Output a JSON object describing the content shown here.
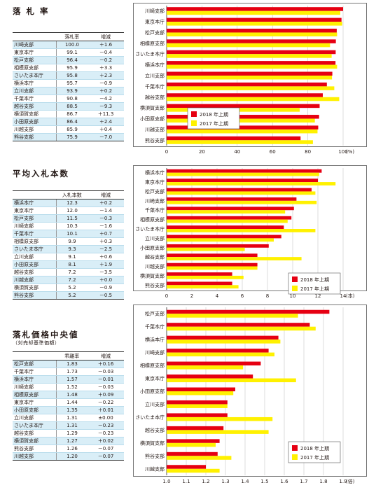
{
  "sections": [
    {
      "title": "落 札 率",
      "subtitle": "",
      "table": {
        "headers": [
          "",
          "落札率",
          "増減"
        ],
        "rows": [
          [
            "川崎支部",
            "100.0",
            "＋1.6"
          ],
          [
            "東京本庁",
            "99.1",
            "－0.4"
          ],
          [
            "松戸支部",
            "96.4",
            "－0.2"
          ],
          [
            "相模原支部",
            "95.9",
            "＋3.3"
          ],
          [
            "さいたま本庁",
            "95.8",
            "＋2.3"
          ],
          [
            "横浜本庁",
            "95.7",
            "－0.9"
          ],
          [
            "立川支部",
            "93.9",
            "＋0.2"
          ],
          [
            "千葉本庁",
            "90.8",
            "－4.2"
          ],
          [
            "越谷支部",
            "88.5",
            "－9.3"
          ],
          [
            "横須賀支部",
            "86.7",
            "＋11.3"
          ],
          [
            "小田原支部",
            "86.4",
            "＋2.4"
          ],
          [
            "川越支部",
            "85.9",
            "＋0.4"
          ],
          [
            "熊谷支部",
            "75.9",
            "－7.0"
          ]
        ]
      }
    },
    {
      "title": "平均入札本数",
      "subtitle": "",
      "table": {
        "headers": [
          "",
          "入札本数",
          "増減"
        ],
        "rows": [
          [
            "横浜本庁",
            "12.3",
            "＋0.2"
          ],
          [
            "東京本庁",
            "12.0",
            "－1.4"
          ],
          [
            "松戸支部",
            "11.5",
            "－0.3"
          ],
          [
            "川崎支部",
            "10.3",
            "－1.6"
          ],
          [
            "千葉本庁",
            "10.1",
            "＋0.7"
          ],
          [
            "相模原支部",
            "9.9",
            "＋0.3"
          ],
          [
            "さいたま本庁",
            "9.3",
            "－2.5"
          ],
          [
            "立川支部",
            "9.1",
            "＋0.6"
          ],
          [
            "小田原支部",
            "8.1",
            "＋1.9"
          ],
          [
            "越谷支部",
            "7.2",
            "－3.5"
          ],
          [
            "川越支部",
            "7.2",
            "＋0.0"
          ],
          [
            "横須賀支部",
            "5.2",
            "－0.9"
          ],
          [
            "熊谷支部",
            "5.2",
            "－0.5"
          ]
        ]
      }
    },
    {
      "title": "落札価格中央値",
      "subtitle": "（対売却基準価額）",
      "table": {
        "headers": [
          "",
          "乖離率",
          "増減"
        ],
        "rows": [
          [
            "松戸支部",
            "1.83",
            "＋0.16"
          ],
          [
            "千葉本庁",
            "1.73",
            "－0.03"
          ],
          [
            "横浜本庁",
            "1.57",
            "－0.01"
          ],
          [
            "川崎支部",
            "1.52",
            "－0.03"
          ],
          [
            "相模原支部",
            "1.48",
            "＋0.09"
          ],
          [
            "東京本庁",
            "1.44",
            "－0.22"
          ],
          [
            "小田原支部",
            "1.35",
            "＋0.01"
          ],
          [
            "立川支部",
            "1.31",
            "±0.00"
          ],
          [
            "さいたま本庁",
            "1.31",
            "－0.23"
          ],
          [
            "越谷支部",
            "1.29",
            "－0.23"
          ],
          [
            "横須賀支部",
            "1.27",
            "＋0.02"
          ],
          [
            "熊谷支部",
            "1.26",
            "－0.07"
          ],
          [
            "川越支部",
            "1.20",
            "－0.07"
          ]
        ]
      }
    }
  ],
  "chart_data": [
    {
      "type": "bar",
      "orientation": "horizontal",
      "categories": [
        "川崎支部",
        "東京本庁",
        "松戸支部",
        "相模原支部",
        "さいたま本庁",
        "横浜本庁",
        "立川支部",
        "千葉本庁",
        "越谷支部",
        "横須賀支部",
        "小田原支部",
        "川越支部",
        "熊谷支部"
      ],
      "series": [
        {
          "name": "2018 年上期",
          "color": "#e60012",
          "values": [
            100.0,
            99.1,
            96.4,
            95.9,
            95.8,
            95.7,
            93.9,
            90.8,
            88.5,
            86.7,
            86.4,
            85.9,
            75.9
          ]
        },
        {
          "name": "2017 年上期",
          "color": "#fff100",
          "values": [
            98.4,
            99.5,
            96.6,
            92.6,
            93.5,
            96.6,
            93.7,
            95.0,
            97.8,
            75.4,
            84.0,
            85.5,
            82.9
          ]
        }
      ],
      "xlim": [
        0,
        100
      ],
      "ticks": [
        "0",
        "20",
        "40",
        "60",
        "80",
        "100"
      ],
      "unit": "(%)",
      "legend": "middle-left",
      "grid": true
    },
    {
      "type": "bar",
      "orientation": "horizontal",
      "categories": [
        "横浜本庁",
        "東京本庁",
        "松戸支部",
        "川崎支部",
        "千葉本庁",
        "相模原支部",
        "さいたま本庁",
        "立川支部",
        "小田原支部",
        "越谷支部",
        "川越支部",
        "横須賀支部",
        "熊谷支部"
      ],
      "series": [
        {
          "name": "2018 年上期",
          "color": "#e60012",
          "values": [
            12.3,
            12.0,
            11.5,
            10.3,
            10.1,
            9.9,
            9.3,
            9.1,
            8.1,
            7.2,
            7.2,
            5.2,
            5.2
          ]
        },
        {
          "name": "2017 年上期",
          "color": "#fff100",
          "values": [
            12.1,
            13.4,
            11.8,
            11.9,
            9.4,
            9.6,
            11.8,
            8.5,
            6.2,
            10.7,
            7.2,
            6.1,
            5.7
          ]
        }
      ],
      "xlim": [
        0,
        14
      ],
      "ticks": [
        "0",
        "2",
        "4",
        "6",
        "8",
        "10",
        "12",
        "14"
      ],
      "unit": "(本)",
      "legend": "bottom-right",
      "grid": true
    },
    {
      "type": "bar",
      "orientation": "horizontal",
      "categories": [
        "松戸支部",
        "千葉本庁",
        "横浜本庁",
        "川崎支部",
        "相模原支部",
        "東京本庁",
        "小田原支部",
        "立川支部",
        "さいたま本庁",
        "越谷支部",
        "横須賀支部",
        "熊谷支部",
        "川越支部"
      ],
      "series": [
        {
          "name": "2018 年上期",
          "color": "#e60012",
          "values": [
            1.83,
            1.73,
            1.57,
            1.52,
            1.48,
            1.44,
            1.35,
            1.31,
            1.31,
            1.29,
            1.27,
            1.26,
            1.2
          ]
        },
        {
          "name": "2017 年上期",
          "color": "#fff100",
          "values": [
            1.67,
            1.76,
            1.58,
            1.55,
            1.39,
            1.66,
            1.34,
            1.31,
            1.54,
            1.52,
            1.25,
            1.33,
            1.27
          ]
        }
      ],
      "xlim": [
        1.0,
        1.9
      ],
      "ticks": [
        "1.0",
        "1.1",
        "1.2",
        "1.3",
        "1.4",
        "1.5",
        "1.6",
        "1.7",
        "1.8",
        "1.9"
      ],
      "unit": "(倍)",
      "legend": "bottom-right",
      "grid": true
    }
  ]
}
